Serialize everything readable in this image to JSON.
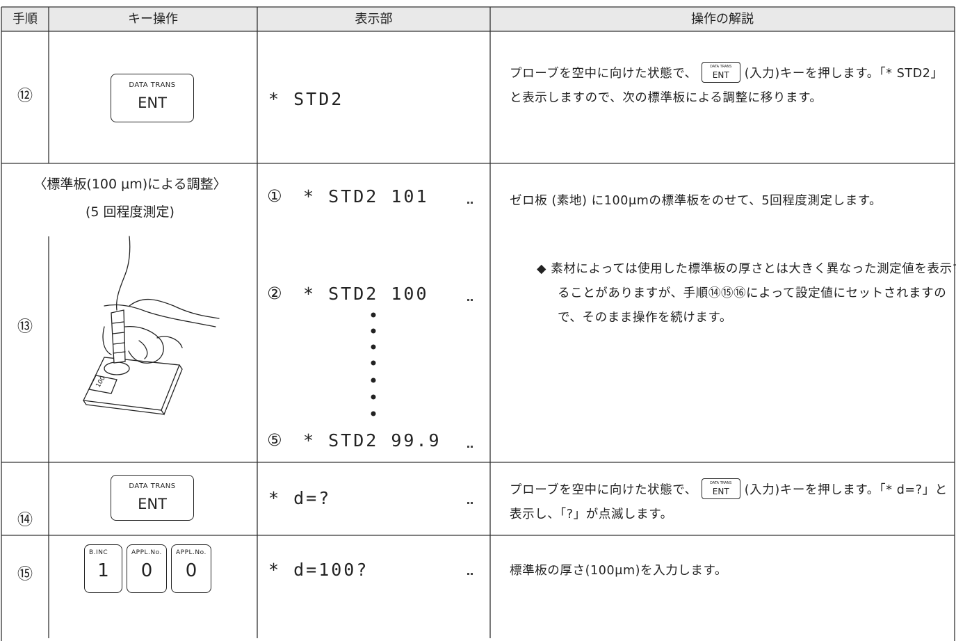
{
  "header": {
    "columns": [
      "手順",
      "キー操作",
      "表示部",
      "操作の解説"
    ]
  },
  "rows": [
    {
      "step": "⑫",
      "keys": [
        {
          "top": "DATA TRANS",
          "main": "ENT"
        }
      ],
      "display": [
        {
          "text": "* STD2"
        }
      ],
      "explanation": [
        {
          "before": "プローブを空中に向けた状態で、",
          "key_top": "DATA TRANS",
          "key_main": "ENT",
          "after": "(入力)キーを押します。「* STD2」と表示しますので、次の標準板による調整に移ります。"
        }
      ]
    },
    {
      "step": "⑬",
      "heading": "〈標準板(100 μm)による調整〉",
      "subheading": "(5 回程度測定)",
      "illustration_label": "100",
      "display": [
        {
          "marker": "①",
          "text": "* STD2 101"
        },
        {
          "marker": "②",
          "text": "* STD2 100"
        },
        {
          "marker": "⑤",
          "text": "* STD2 99.9"
        }
      ],
      "explanation": [
        {
          "text": "ゼロ板 (素地) に100μmの標準板をのせて、5回程度測定します。"
        },
        {
          "bullet": "◆",
          "text": "素材によっては使用した標準板の厚さとは大きく異なった測定値を表示することがありますが、手順⑭⑮⑯によって設定値にセットされますので、そのまま操作を続けます。"
        }
      ]
    },
    {
      "step": "⑭",
      "keys": [
        {
          "top": "DATA TRANS",
          "main": "ENT"
        }
      ],
      "display": [
        {
          "text": "* d=?"
        }
      ],
      "explanation": [
        {
          "before": "プローブを空中に向けた状態で、",
          "key_top": "DATA TRANS",
          "key_main": "ENT",
          "after": "(入力)キーを押します。「* d=?」と表示し、「?」が点滅します。"
        }
      ]
    },
    {
      "step": "⑮",
      "keys": [
        {
          "top": "B.INC",
          "main": "1"
        },
        {
          "top": "APPL.No.",
          "main": "0"
        },
        {
          "top": "APPL.No.",
          "main": "0"
        }
      ],
      "display": [
        {
          "text": "* d=100?"
        }
      ],
      "explanation": [
        {
          "text": "標準板の厚さ(100μm)を入力します。"
        }
      ]
    }
  ]
}
